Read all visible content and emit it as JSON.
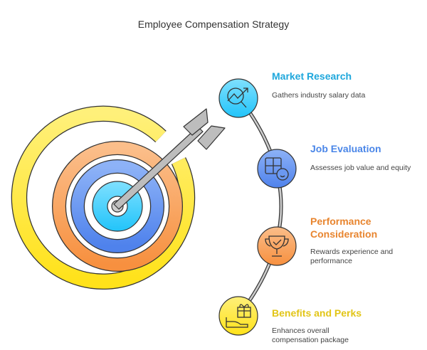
{
  "title": "Employee Compensation Strategy",
  "steps": [
    {
      "title": "Market Research",
      "description": "Gathers industry salary data",
      "color": "#1EA7DC",
      "icon": "chart-magnifier-icon"
    },
    {
      "title": "Job Evaluation",
      "description": "Assesses job value and equity",
      "color": "#4A86E8",
      "icon": "puzzle-gauge-icon"
    },
    {
      "title": "Performance Consideration",
      "description": "Rewards experience and performance",
      "color": "#E8852F",
      "icon": "trophy-icon"
    },
    {
      "title": "Benefits and Perks",
      "description": "Enhances overall compensation package",
      "color": "#E2C516",
      "icon": "gift-hand-icon"
    }
  ],
  "colors": {
    "yellow": "#FFE633",
    "orange": "#F79A4F",
    "blue": "#5B8DEF",
    "cyan": "#33CCFF",
    "arrow": "#BDBDBD"
  }
}
